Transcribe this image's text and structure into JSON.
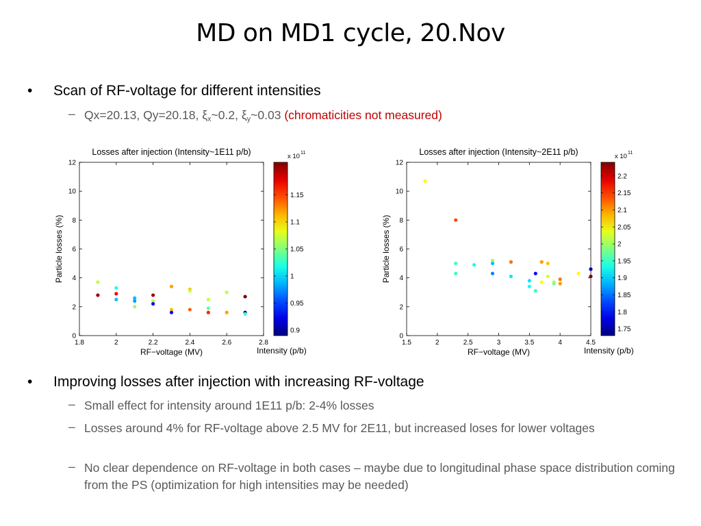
{
  "slide": {
    "title": "MD on MD1 cycle, 20.Nov",
    "bullet1": "Scan of RF-voltage for different intensities",
    "sub1": {
      "qx": "Qx=20.13, Qy=20.18, ξ",
      "x_sub": "x",
      "mid": "~0.2, ξ",
      "y_sub": "y",
      "end": "~0.03 ",
      "note": "(chromaticities not measured)"
    },
    "bullet2": "Improving losses after injection with increasing RF-voltage",
    "sub2": [
      "Small effect for intensity around 1E11 p/b: 2-4% losses",
      "Losses around 4% for RF-voltage above 2.5 MV for 2E11, but increased loses for lower voltages",
      "No clear dependence on RF-voltage in both cases – maybe due to longitudinal phase space distribution coming from the PS (optimization for high intensities may be needed)"
    ],
    "bullet_dot": "•",
    "dash": "–"
  },
  "chart_data": [
    {
      "type": "scatter",
      "title": "Losses after injection (Intensity~1E11 p/b)",
      "xlabel": "RF−voltage (MV)",
      "ylabel": "Particle losses (%)",
      "xlim": [
        1.8,
        2.8
      ],
      "ylim": [
        0,
        12
      ],
      "xticks": [
        "1.8",
        "2",
        "2.2",
        "2.4",
        "2.6",
        "2.8"
      ],
      "yticks": [
        "0",
        "2",
        "4",
        "6",
        "8",
        "10",
        "12"
      ],
      "colorbar": {
        "label": "Intensity (p/b)",
        "exponent": "x 10",
        "exponent_power": "11",
        "range": [
          0.89,
          1.21
        ],
        "ticks": [
          "0.9",
          "0.95",
          "1",
          "1.05",
          "1.1",
          "1.15"
        ]
      },
      "grid": false,
      "points": [
        {
          "x": 1.9,
          "y": 3.7,
          "c": 1.07
        },
        {
          "x": 1.9,
          "y": 2.8,
          "c": 1.2
        },
        {
          "x": 2.0,
          "y": 3.3,
          "c": 1.02
        },
        {
          "x": 2.0,
          "y": 2.9,
          "c": 1.17
        },
        {
          "x": 2.0,
          "y": 2.5,
          "c": 0.99
        },
        {
          "x": 2.1,
          "y": 2.6,
          "c": 0.99
        },
        {
          "x": 2.1,
          "y": 2.4,
          "c": 0.98
        },
        {
          "x": 2.1,
          "y": 2.0,
          "c": 1.06
        },
        {
          "x": 2.2,
          "y": 2.8,
          "c": 1.2
        },
        {
          "x": 2.2,
          "y": 2.4,
          "c": 1.07
        },
        {
          "x": 2.2,
          "y": 2.2,
          "c": 0.93
        },
        {
          "x": 2.3,
          "y": 3.4,
          "c": 1.12
        },
        {
          "x": 2.3,
          "y": 1.8,
          "c": 1.11
        },
        {
          "x": 2.3,
          "y": 1.6,
          "c": 0.93
        },
        {
          "x": 2.4,
          "y": 3.2,
          "c": 1.11
        },
        {
          "x": 2.4,
          "y": 3.1,
          "c": 1.07
        },
        {
          "x": 2.4,
          "y": 1.8,
          "c": 1.14
        },
        {
          "x": 2.5,
          "y": 2.5,
          "c": 1.07
        },
        {
          "x": 2.5,
          "y": 1.9,
          "c": 1.04
        },
        {
          "x": 2.5,
          "y": 1.6,
          "c": 1.16
        },
        {
          "x": 2.6,
          "y": 3.0,
          "c": 1.07
        },
        {
          "x": 2.6,
          "y": 1.6,
          "c": 1.12
        },
        {
          "x": 2.7,
          "y": 2.7,
          "c": 1.21
        },
        {
          "x": 2.7,
          "y": 1.6,
          "c": 0.9
        },
        {
          "x": 2.7,
          "y": 1.5,
          "c": 1.03
        }
      ]
    },
    {
      "type": "scatter",
      "title": "Losses after injection (Intensity~2E11 p/b)",
      "xlabel": "RF−voltage (MV)",
      "ylabel": "Particle losses (%)",
      "xlim": [
        1.5,
        4.5
      ],
      "ylim": [
        0,
        12
      ],
      "xticks": [
        "1.5",
        "2",
        "2.5",
        "3",
        "3.5",
        "4",
        "4.5"
      ],
      "yticks": [
        "0",
        "2",
        "4",
        "6",
        "8",
        "10",
        "12"
      ],
      "colorbar": {
        "label": "Intensity (p/b)",
        "exponent": "x 10",
        "exponent_power": "11",
        "range": [
          1.73,
          2.24
        ],
        "ticks": [
          "1.75",
          "1.8",
          "1.85",
          "1.9",
          "1.95",
          "2",
          "2.05",
          "2.1",
          "2.15",
          "2.2"
        ]
      },
      "grid": false,
      "points": [
        {
          "x": 1.8,
          "y": 10.7,
          "c": 2.05
        },
        {
          "x": 2.3,
          "y": 8.0,
          "c": 2.14
        },
        {
          "x": 2.3,
          "y": 5.0,
          "c": 1.95
        },
        {
          "x": 2.3,
          "y": 4.3,
          "c": 1.95
        },
        {
          "x": 2.6,
          "y": 4.9,
          "c": 1.93
        },
        {
          "x": 2.9,
          "y": 5.2,
          "c": 2.0
        },
        {
          "x": 2.9,
          "y": 5.0,
          "c": 1.89
        },
        {
          "x": 2.9,
          "y": 4.3,
          "c": 1.86
        },
        {
          "x": 3.2,
          "y": 5.1,
          "c": 2.12
        },
        {
          "x": 3.2,
          "y": 4.1,
          "c": 1.91
        },
        {
          "x": 3.5,
          "y": 3.8,
          "c": 1.91
        },
        {
          "x": 3.5,
          "y": 3.4,
          "c": 1.93
        },
        {
          "x": 3.6,
          "y": 4.3,
          "c": 1.8
        },
        {
          "x": 3.6,
          "y": 3.1,
          "c": 1.95
        },
        {
          "x": 3.7,
          "y": 5.1,
          "c": 2.1
        },
        {
          "x": 3.7,
          "y": 3.7,
          "c": 2.05
        },
        {
          "x": 3.8,
          "y": 5.0,
          "c": 2.08
        },
        {
          "x": 3.8,
          "y": 4.1,
          "c": 2.03
        },
        {
          "x": 3.9,
          "y": 3.6,
          "c": 1.97
        },
        {
          "x": 3.9,
          "y": 3.7,
          "c": 2.0
        },
        {
          "x": 4.0,
          "y": 3.9,
          "c": 2.12
        },
        {
          "x": 4.0,
          "y": 3.6,
          "c": 2.1
        },
        {
          "x": 4.3,
          "y": 4.3,
          "c": 2.05
        },
        {
          "x": 4.5,
          "y": 4.6,
          "c": 1.75
        },
        {
          "x": 4.5,
          "y": 4.1,
          "c": 2.24
        }
      ]
    }
  ]
}
